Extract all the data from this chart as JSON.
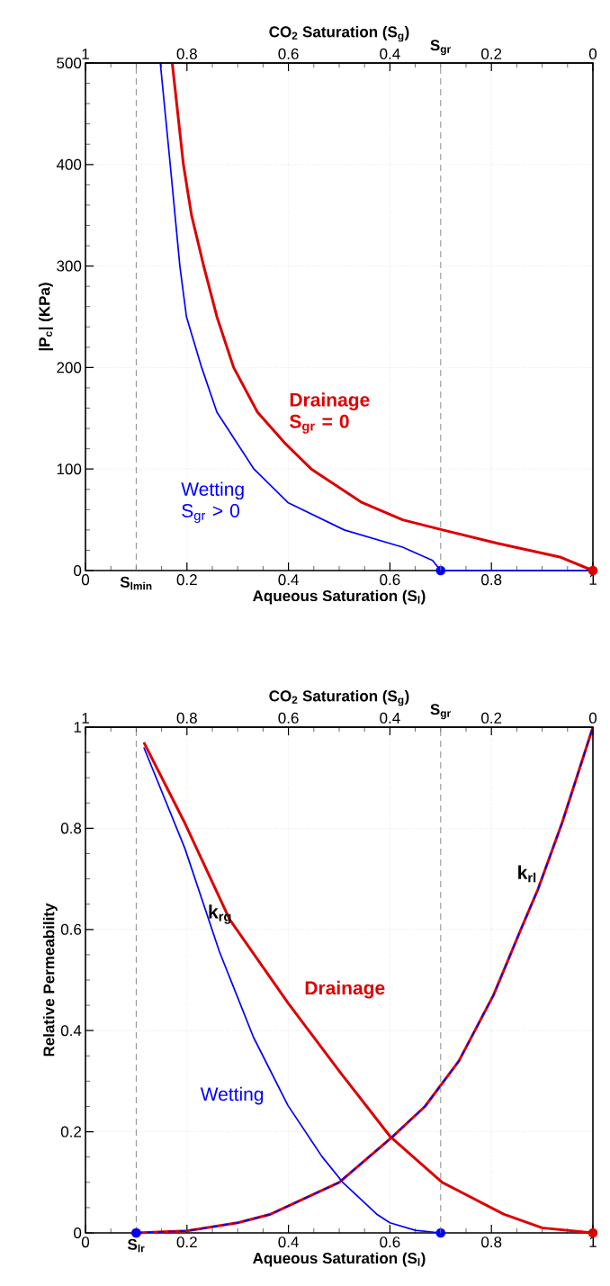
{
  "chart_data": [
    {
      "type": "line",
      "xlabel": "Aqueous Saturation (S$_{l}$)",
      "ylabel": "|P$_{c}$| (KPa)",
      "x2label": "CO$_{2}$ Saturation (S$_{g}$)",
      "xlim": [
        0,
        1
      ],
      "xticks": [
        0,
        0.2,
        0.4,
        0.6,
        0.8,
        1
      ],
      "x2lim": [
        1,
        0
      ],
      "x2ticks": [
        1,
        0.8,
        0.6,
        0.4,
        0.2,
        0
      ],
      "ylim": [
        0,
        500
      ],
      "yticks": [
        0,
        100,
        200,
        300,
        400,
        500
      ],
      "grid": true,
      "ref_lines": [
        {
          "axis": "x",
          "value": 0.1,
          "label": "S$_{lmin}$",
          "color": "#808080",
          "line_style": "dashed"
        },
        {
          "axis": "x2",
          "value": 0.3,
          "label": "S$_{gr}$",
          "color": "#808080",
          "line_style": "dashed"
        }
      ],
      "series": [
        {
          "type": "line",
          "name": "Drainage S$_{gr}$ = 0",
          "color": "#dd0000",
          "x": [
            0.171,
            0.193,
            0.209,
            0.233,
            0.259,
            0.292,
            0.339,
            0.392,
            0.445,
            0.545,
            0.625,
            0.704,
            0.81,
            0.937,
            1
          ],
          "values": [
            500,
            400,
            350,
            300,
            250,
            200,
            156,
            126,
            100,
            67,
            50,
            40,
            27,
            13,
            0
          ]
        },
        {
          "type": "line",
          "name": "Wetting S$_{gr}$ > 0",
          "color": "#0000ff",
          "x": [
            0.1475,
            0.167,
            0.186,
            0.199,
            0.229,
            0.259,
            0.332,
            0.399,
            0.51,
            0.625,
            0.684,
            0.7,
            1
          ],
          "values": [
            500,
            400,
            300,
            250,
            200,
            156,
            100,
            67,
            40,
            23,
            10,
            0,
            0
          ]
        },
        {
          "type": "scatter",
          "marker": "circle",
          "color": "#0000ff",
          "x": [
            0.7
          ],
          "values": [
            0
          ]
        },
        {
          "type": "scatter",
          "marker": "circle",
          "color": "#dd0000",
          "x": [
            1
          ],
          "values": [
            0
          ]
        }
      ]
    },
    {
      "type": "line",
      "xlabel": "Aqueous Saturation (S$_{l}$)",
      "ylabel": "Relative Permeability",
      "x2label": "CO$_{2}$ Saturation (S$_{g}$)",
      "xlim": [
        0,
        1
      ],
      "xticks": [
        0,
        0.2,
        0.4,
        0.6,
        0.8,
        1
      ],
      "x2lim": [
        1,
        0
      ],
      "x2ticks": [
        1,
        0.8,
        0.6,
        0.4,
        0.2,
        0
      ],
      "ylim": [
        0,
        1
      ],
      "yticks": [
        0,
        0.2,
        0.4,
        0.6,
        0.8,
        1
      ],
      "grid": true,
      "ref_lines": [
        {
          "axis": "x",
          "value": 0.1,
          "label": "S$_{lr}$",
          "color": "#808080",
          "line_style": "dashed"
        },
        {
          "axis": "x2",
          "value": 0.3,
          "label": "S$_{gr}$",
          "color": "#808080",
          "line_style": "dashed"
        }
      ],
      "annotations": [
        "k$_{rg}$",
        "k$_{rl}$"
      ],
      "series": [
        {
          "type": "line",
          "name": "Drainage",
          "color": "#dd0000",
          "x": [
            0.115,
            0.196,
            0.284,
            0.399,
            0.5,
            0.601,
            0.703,
            0.824,
            0.9,
            1
          ],
          "values": [
            0.97,
            0.81,
            0.62,
            0.455,
            0.32,
            0.19,
            0.1,
            0.037,
            0.01,
            0
          ]
        },
        {
          "type": "line",
          "color": "#dd0000",
          "x": [
            0.1,
            0.2,
            0.3,
            0.365,
            0.5,
            0.605,
            0.669,
            0.736,
            0.804,
            0.858,
            0.892,
            0.939,
            1
          ],
          "values": [
            0,
            0.004,
            0.02,
            0.037,
            0.1,
            0.19,
            0.25,
            0.34,
            0.47,
            0.6,
            0.68,
            0.81,
            1
          ]
        },
        {
          "type": "line",
          "name": "Wetting",
          "color": "#0000ff",
          "x": [
            0.115,
            0.196,
            0.264,
            0.331,
            0.399,
            0.466,
            0.507,
            0.574,
            0.6,
            0.65,
            0.7
          ],
          "values": [
            0.96,
            0.76,
            0.556,
            0.387,
            0.252,
            0.151,
            0.1,
            0.037,
            0.02,
            0.005,
            0
          ]
        },
        {
          "type": "line",
          "line_style": "dashed",
          "color": "#0000ff",
          "x": [
            0.1,
            0.2,
            0.3,
            0.365,
            0.5,
            0.605,
            0.669,
            0.736,
            0.804,
            0.858,
            0.892,
            0.939,
            1
          ],
          "values": [
            0,
            0.004,
            0.02,
            0.037,
            0.1,
            0.19,
            0.25,
            0.34,
            0.47,
            0.6,
            0.68,
            0.81,
            1
          ]
        },
        {
          "type": "scatter",
          "marker": "circle",
          "color": "#dd0000",
          "x": [
            0.1,
            1
          ],
          "values": [
            0,
            0
          ]
        },
        {
          "type": "scatter",
          "marker": "circle",
          "color": "#0000ff",
          "x": [
            0.1,
            0.7
          ],
          "values": [
            0,
            0
          ]
        }
      ]
    }
  ]
}
